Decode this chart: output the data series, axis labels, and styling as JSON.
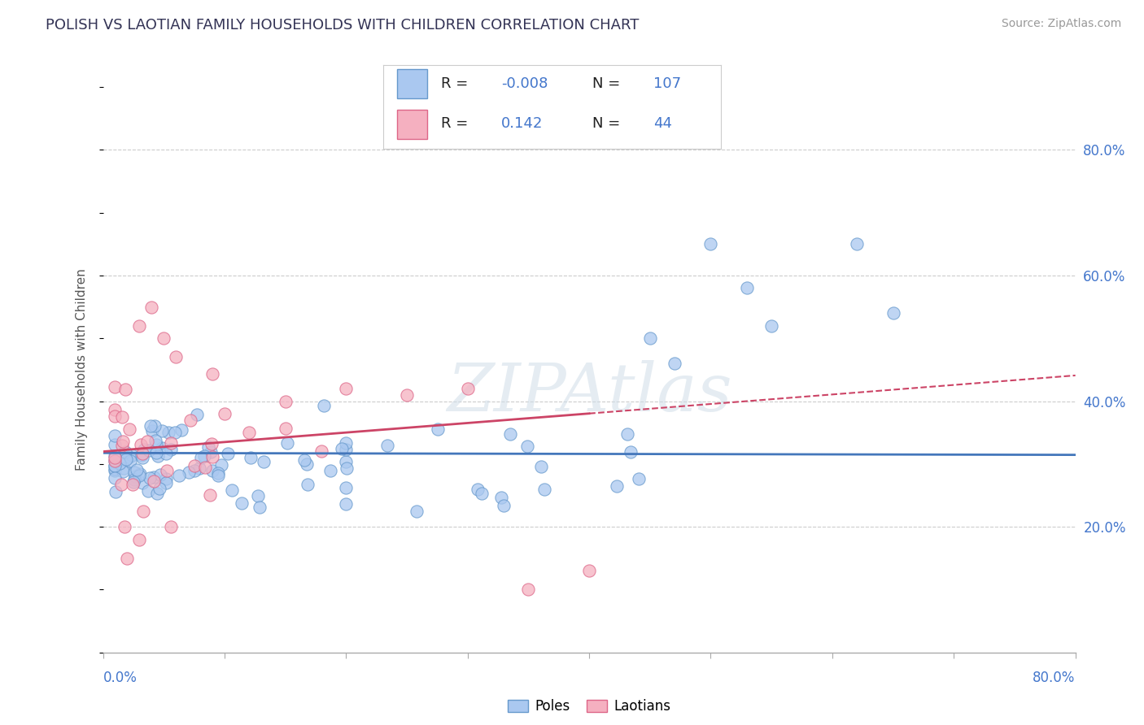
{
  "title": "POLISH VS LAOTIAN FAMILY HOUSEHOLDS WITH CHILDREN CORRELATION CHART",
  "source_text": "Source: ZipAtlas.com",
  "ylabel": "Family Households with Children",
  "ytick_values": [
    0.8,
    0.6,
    0.4,
    0.2
  ],
  "xlim": [
    0.0,
    0.8
  ],
  "ylim": [
    0.0,
    0.9
  ],
  "poles_color": "#aac8f0",
  "poles_edge_color": "#6699cc",
  "laotians_color": "#f5b0c0",
  "laotians_edge_color": "#dd6688",
  "trend_poles_color": "#4477bb",
  "trend_laotians_color": "#cc4466",
  "poles_R": -0.008,
  "poles_N": 107,
  "laotians_R": 0.142,
  "laotians_N": 44,
  "legend_text_color": "#4477cc",
  "legend_label_color": "#333333",
  "watermark": "ZIPAtlas",
  "watermark_color": "#d0dde8",
  "background_color": "#ffffff",
  "grid_color": "#cccccc",
  "title_color": "#333355",
  "axis_color": "#aaaaaa"
}
